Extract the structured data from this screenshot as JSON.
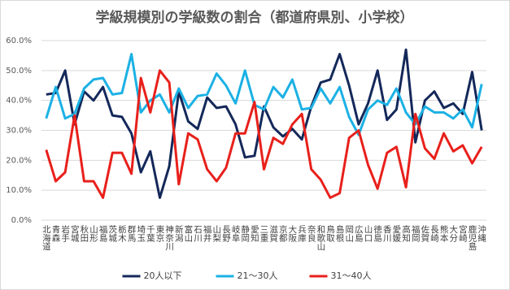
{
  "chart_data": {
    "type": "line",
    "title": "学級規模別の学級数の割合（都道府県別、小学校）",
    "categories": [
      "北海道",
      "青森",
      "岩手",
      "宮城",
      "秋田",
      "山形",
      "福島",
      "茨城",
      "栃木",
      "群馬",
      "埼玉",
      "千葉",
      "東京",
      "神奈川",
      "新潟",
      "富山",
      "石川",
      "福井",
      "山梨",
      "長野",
      "岐阜",
      "静岡",
      "愛知",
      "三重",
      "滋賀",
      "京都",
      "大阪",
      "兵庫",
      "奈良",
      "和歌山",
      "鳥取",
      "島根",
      "岡山",
      "広島",
      "山口",
      "徳島",
      "香川",
      "愛媛",
      "高知",
      "福岡",
      "佐賀",
      "長崎",
      "熊本",
      "大分",
      "宮崎",
      "鹿児島",
      "沖縄"
    ],
    "series": [
      {
        "name": "20人以下",
        "color": "#14285a",
        "values": [
          42,
          42.5,
          50,
          32,
          43,
          40,
          44.5,
          35,
          34.5,
          29,
          16,
          23,
          7.5,
          18,
          43,
          33,
          30.5,
          41,
          37.5,
          38,
          32,
          21,
          21.5,
          38,
          31,
          28,
          30.5,
          27,
          38,
          46,
          47,
          55.5,
          45,
          32,
          39,
          50,
          33.5,
          37,
          57,
          26,
          40,
          43,
          37.5,
          39,
          35.5,
          49.5,
          30
        ]
      },
      {
        "name": "21～30人",
        "color": "#1cb1e4",
        "values": [
          34,
          44.5,
          34,
          35.5,
          44,
          47,
          47.5,
          42,
          42.5,
          55.5,
          36,
          40,
          42,
          36,
          44,
          37.5,
          41.5,
          42,
          49,
          45,
          39,
          50,
          38.5,
          37,
          44.5,
          41,
          47,
          37,
          37.5,
          44,
          39,
          44.5,
          34.5,
          28.5,
          37,
          40,
          38.5,
          44,
          36,
          32,
          38,
          36,
          36,
          34,
          37,
          31,
          45.5
        ]
      },
      {
        "name": "31～40人",
        "color": "#e8201b",
        "values": [
          23.5,
          13,
          16,
          35,
          13,
          13,
          7.5,
          22.5,
          22.5,
          15.5,
          47.5,
          36,
          50,
          46,
          12,
          29,
          27,
          17,
          13,
          17.5,
          29,
          29,
          39.5,
          17,
          27.5,
          25.5,
          32,
          35.5,
          17,
          13.5,
          7.5,
          9,
          27.5,
          30,
          18.5,
          10.5,
          22.5,
          24.5,
          11,
          35.5,
          24,
          20.5,
          29,
          23,
          25,
          19,
          24.5
        ]
      }
    ],
    "ylim": [
      0,
      60
    ],
    "yticks": [
      {
        "value": 0,
        "label": "0.0%"
      },
      {
        "value": 10,
        "label": "10.0%"
      },
      {
        "value": 20,
        "label": "20.0%"
      },
      {
        "value": 30,
        "label": "30.0%"
      },
      {
        "value": 40,
        "label": "40.0%"
      },
      {
        "value": 50,
        "label": "50.0%"
      },
      {
        "value": 60,
        "label": "60.0%"
      }
    ],
    "grid": true
  }
}
